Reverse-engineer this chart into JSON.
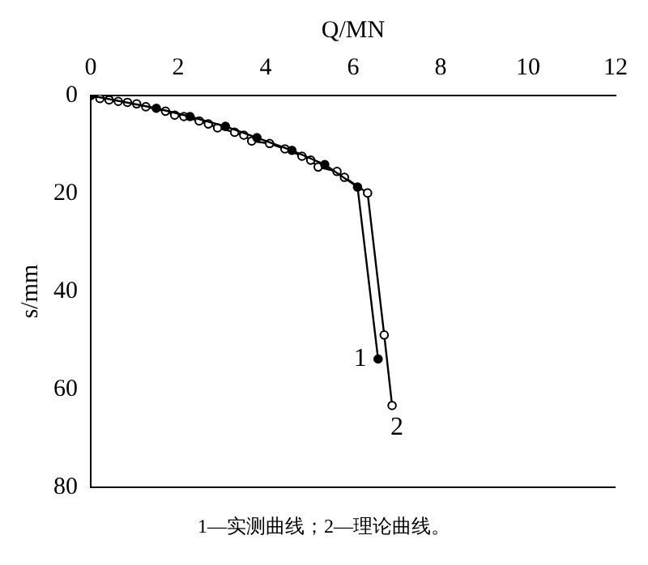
{
  "chart_data": {
    "type": "line",
    "xlabel": "Q/MN",
    "ylabel": "s/mm",
    "xlim": [
      0,
      12
    ],
    "xticks": [
      0,
      2,
      4,
      6,
      8,
      10,
      12
    ],
    "ylim": [
      80,
      0
    ],
    "yticks": [
      0,
      20,
      40,
      60,
      80
    ],
    "grid": false,
    "legend": false,
    "line_style": "solid",
    "annotations": [
      "1—实测曲线；2—理论曲线。"
    ],
    "series": [
      {
        "name": "1",
        "color": "#000000",
        "marker": "circle",
        "x": [
          0,
          1.5,
          2.27,
          3.08,
          3.8,
          4.6,
          5.35,
          6.1,
          6.57
        ],
        "values": [
          0,
          2.6,
          4.3,
          6.3,
          8.6,
          11.2,
          14.1,
          18.7,
          53.8
        ]
      },
      {
        "name": "2",
        "color": "#000000",
        "marker": "circle",
        "x": [
          0,
          0.21,
          0.42,
          0.63,
          0.84,
          1.05,
          1.26,
          1.71,
          1.92,
          2.13,
          2.48,
          2.69,
          2.9,
          3.29,
          3.5,
          3.68,
          4.09,
          4.44,
          4.83,
          5.03,
          5.2,
          5.63,
          5.8,
          6.33,
          6.71,
          6.89
        ],
        "values": [
          0,
          0.6,
          0.9,
          1.2,
          1.4,
          1.7,
          2.3,
          3.2,
          4.0,
          4.3,
          5.2,
          5.8,
          6.6,
          7.5,
          8.1,
          9.3,
          9.8,
          10.9,
          12.4,
          13.2,
          14.6,
          15.5,
          16.7,
          19.9,
          48.9,
          63.3
        ]
      }
    ]
  }
}
